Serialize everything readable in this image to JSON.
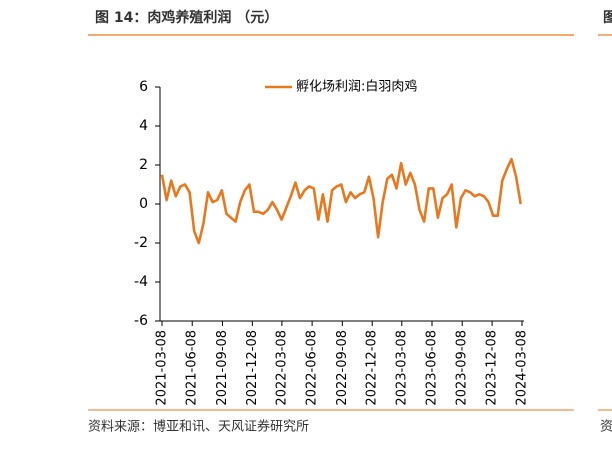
{
  "chart_data": {
    "type": "line",
    "title": "图 14：肉鸡养殖利润 （元）",
    "x": [
      "2021-03-08",
      "2021-03-22",
      "2021-04-05",
      "2021-04-19",
      "2021-05-03",
      "2021-05-17",
      "2021-05-31",
      "2021-06-14",
      "2021-06-28",
      "2021-07-12",
      "2021-07-26",
      "2021-08-09",
      "2021-08-23",
      "2021-09-06",
      "2021-09-20",
      "2021-10-04",
      "2021-10-18",
      "2021-11-01",
      "2021-11-15",
      "2021-11-29",
      "2021-12-13",
      "2021-12-27",
      "2022-01-10",
      "2022-01-24",
      "2022-02-07",
      "2022-02-21",
      "2022-03-07",
      "2022-03-21",
      "2022-04-04",
      "2022-04-18",
      "2022-05-02",
      "2022-05-16",
      "2022-05-30",
      "2022-06-13",
      "2022-06-27",
      "2022-07-11",
      "2022-07-25",
      "2022-08-08",
      "2022-08-22",
      "2022-09-05",
      "2022-09-19",
      "2022-10-03",
      "2022-10-17",
      "2022-10-31",
      "2022-11-14",
      "2022-11-28",
      "2022-12-12",
      "2022-12-26",
      "2023-01-09",
      "2023-01-23",
      "2023-02-06",
      "2023-02-20",
      "2023-03-06",
      "2023-03-20",
      "2023-04-03",
      "2023-04-17",
      "2023-05-01",
      "2023-05-15",
      "2023-05-29",
      "2023-06-12",
      "2023-06-26",
      "2023-07-10",
      "2023-07-24",
      "2023-08-07",
      "2023-08-21",
      "2023-09-04",
      "2023-09-18",
      "2023-10-02",
      "2023-10-16",
      "2023-10-30",
      "2023-11-13",
      "2023-11-27",
      "2023-12-11",
      "2023-12-25",
      "2024-01-08",
      "2024-01-22",
      "2024-02-05",
      "2024-02-19",
      "2024-03-04"
    ],
    "series": [
      {
        "name": "孵化场利润:白羽肉鸡",
        "color": "#e8781e",
        "values": [
          1.5,
          0.2,
          1.2,
          0.4,
          0.9,
          1.0,
          0.6,
          -1.4,
          -2.0,
          -1.0,
          0.6,
          0.1,
          0.2,
          0.7,
          -0.5,
          -0.7,
          -0.9,
          0.1,
          0.7,
          1.0,
          -0.4,
          -0.4,
          -0.5,
          -0.3,
          0.1,
          -0.3,
          -0.8,
          -0.2,
          0.4,
          1.1,
          0.3,
          0.7,
          0.9,
          0.8,
          -0.8,
          0.5,
          -0.9,
          0.7,
          0.9,
          1.0,
          0.1,
          0.6,
          0.3,
          0.5,
          0.6,
          1.4,
          0.3,
          -1.7,
          0.1,
          1.3,
          1.5,
          0.8,
          2.1,
          1.0,
          1.6,
          1.0,
          -0.3,
          -0.9,
          0.8,
          0.8,
          -0.7,
          0.3,
          0.5,
          1.0,
          -1.2,
          0.3,
          0.7,
          0.6,
          0.4,
          0.5,
          0.4,
          0.1,
          -0.6,
          -0.6,
          1.2,
          1.8,
          2.3,
          1.4,
          0.0
        ]
      }
    ],
    "xlim": [
      "2021-03-08",
      "2024-03-08"
    ],
    "xticks": [
      "2021-03-08",
      "2021-06-08",
      "2021-09-08",
      "2021-12-08",
      "2022-03-08",
      "2022-06-08",
      "2022-09-08",
      "2022-12-08",
      "2023-03-08",
      "2023-06-08",
      "2023-09-08",
      "2023-12-08",
      "2024-03-08"
    ],
    "ylim": [
      -6,
      6
    ],
    "yticks": [
      -6,
      -4,
      -2,
      0,
      2,
      4,
      6
    ],
    "grid": false,
    "legend": "top"
  },
  "source": "资料来源：博亚和讯、天风证券研究所",
  "next_column": {
    "title": "图",
    "source": "资"
  }
}
